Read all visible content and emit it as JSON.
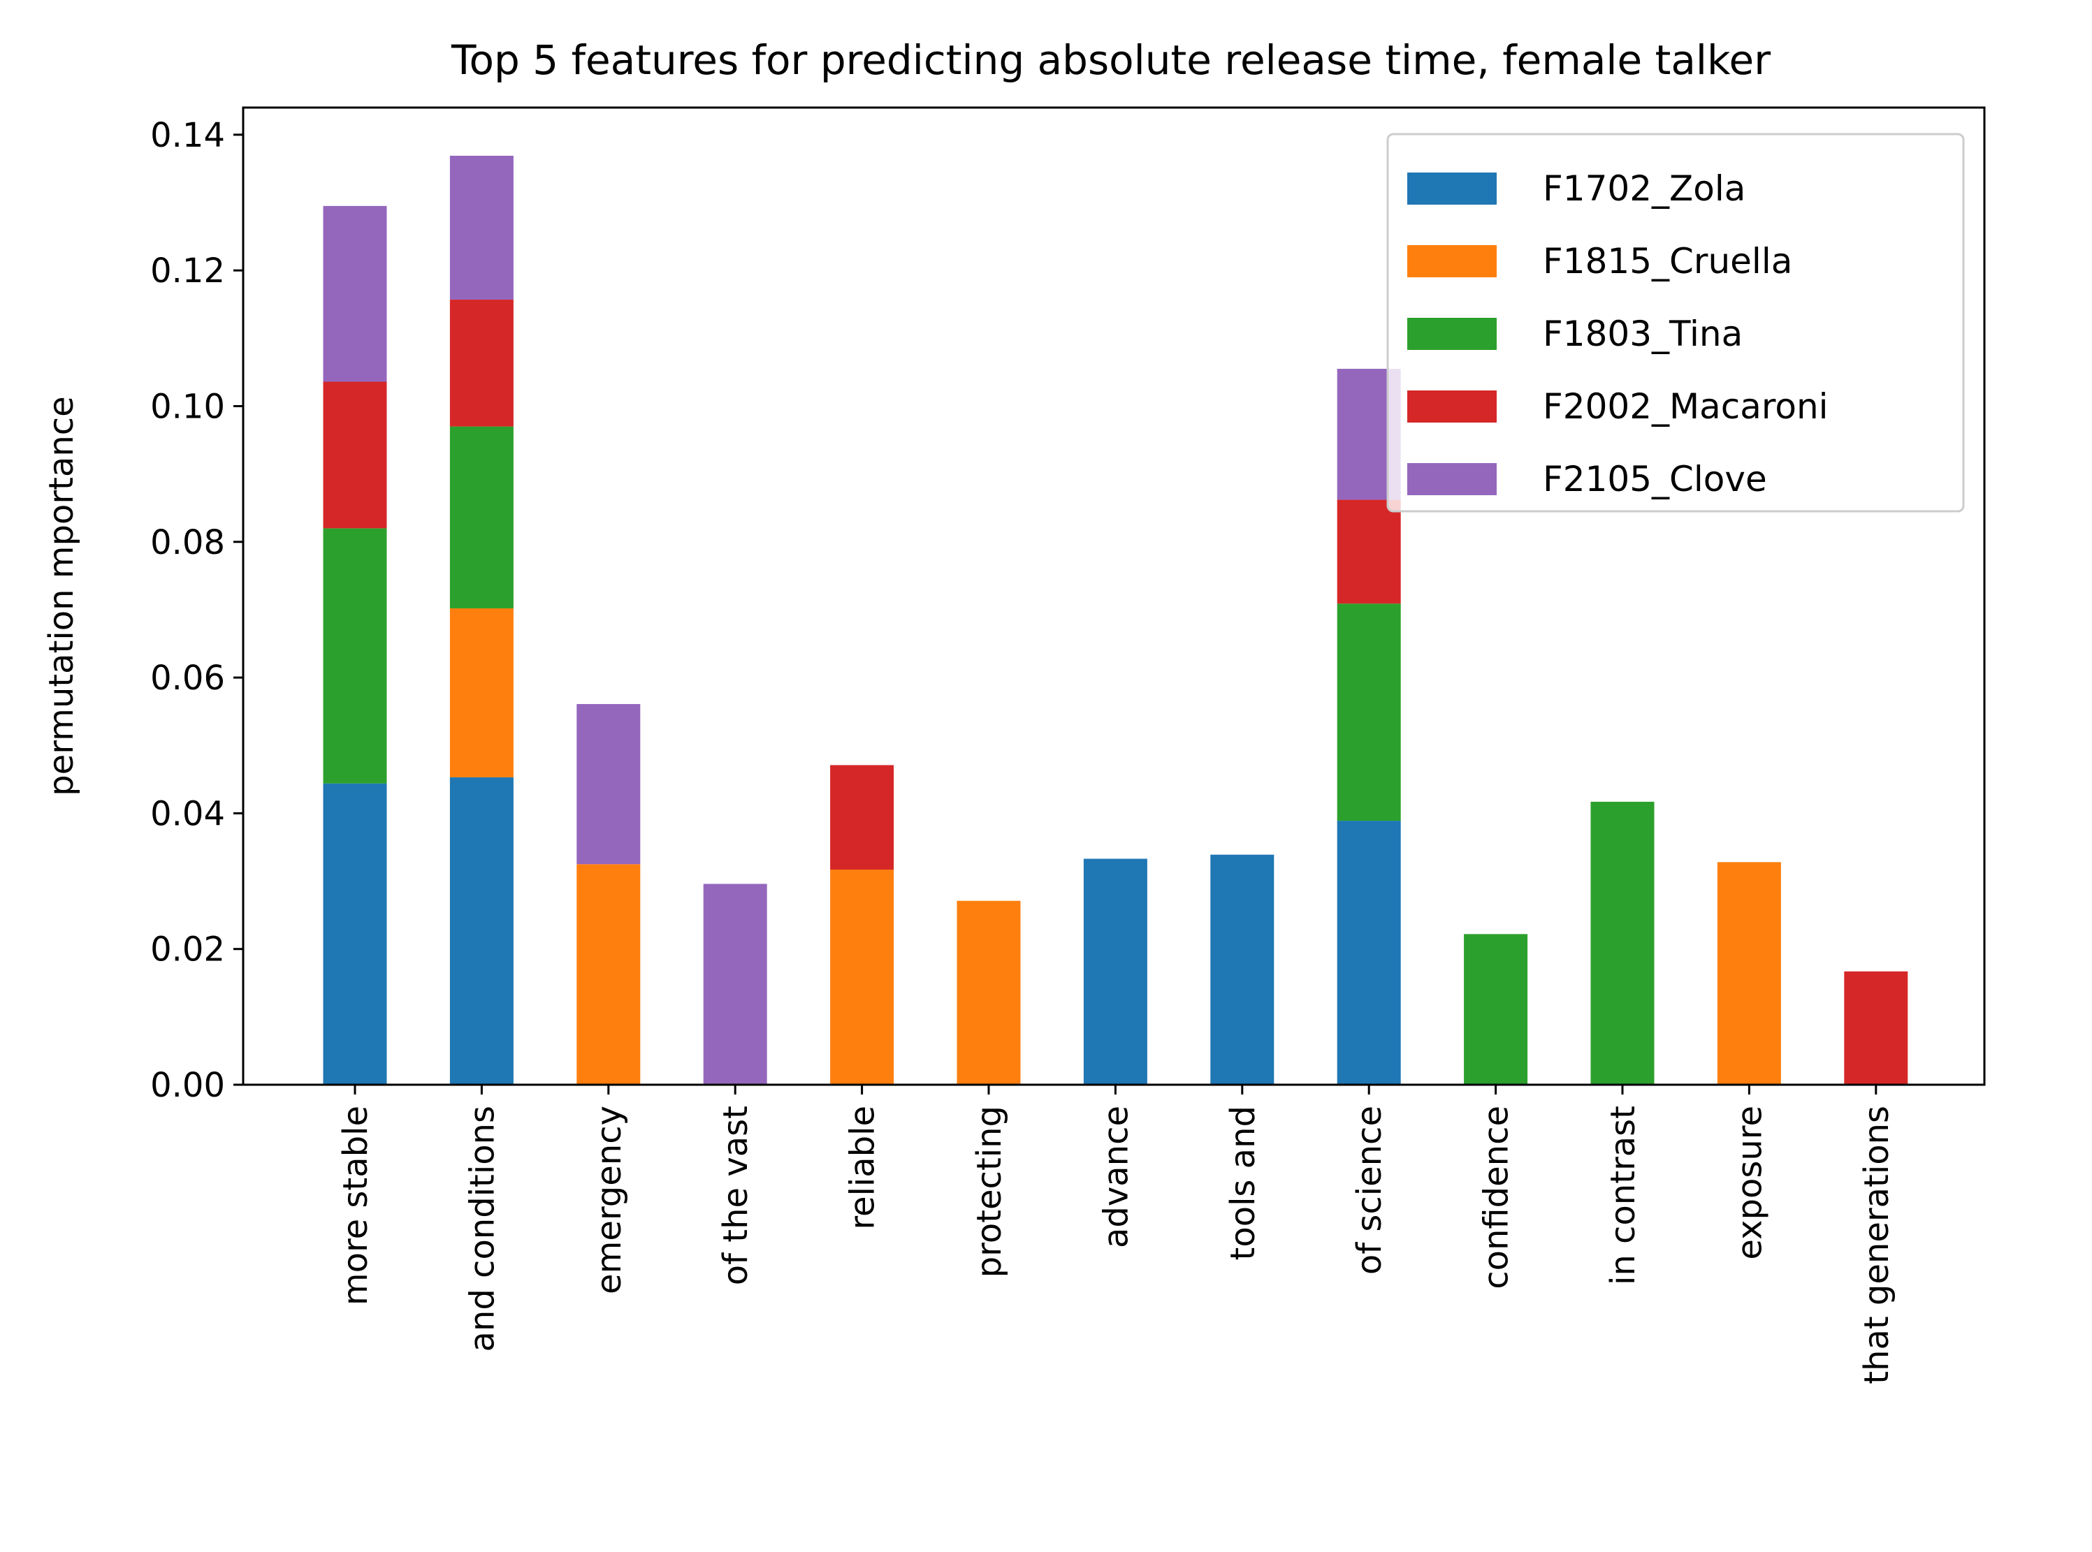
{
  "chart_data": {
    "type": "bar",
    "stacked": true,
    "title": "Top 5 features for predicting absolute release time, female talker",
    "xlabel": "",
    "ylabel": "permutation mportance",
    "ylim": [
      0,
      0.144
    ],
    "yticks": [
      "0.00",
      "0.02",
      "0.04",
      "0.06",
      "0.08",
      "0.10",
      "0.12",
      "0.14"
    ],
    "grid": false,
    "legend_position": "top-right",
    "categories": [
      "more stable",
      "and conditions",
      "emergency",
      "of the vast",
      "reliable",
      "protecting",
      "advance",
      "tools and",
      "of science",
      "confidence",
      "in contrast",
      "exposure",
      "that generations"
    ],
    "series": [
      {
        "name": "F1702_Zola",
        "color": "#1f77b4",
        "values": [
          0.0444,
          0.0453,
          0,
          0,
          0,
          0,
          0.0333,
          0.0339,
          0.0389,
          0,
          0,
          0,
          0
        ]
      },
      {
        "name": "F1815_Cruella",
        "color": "#ff7f0e",
        "values": [
          0,
          0.0249,
          0.0325,
          0,
          0.0317,
          0.0271,
          0,
          0,
          0,
          0,
          0,
          0.0328,
          0
        ]
      },
      {
        "name": "F1803_Tina",
        "color": "#2ca02c",
        "values": [
          0.0376,
          0.0268,
          0,
          0,
          0,
          0,
          0,
          0,
          0.032,
          0.0222,
          0.0417,
          0,
          0
        ]
      },
      {
        "name": "F2002_Macaroni",
        "color": "#d62728",
        "values": [
          0.0216,
          0.0187,
          0,
          0,
          0.0154,
          0,
          0,
          0,
          0.0153,
          0,
          0,
          0,
          0.0167
        ]
      },
      {
        "name": "F2105_Clove",
        "color": "#9467bd",
        "values": [
          0.0259,
          0.0212,
          0.0236,
          0.0296,
          0,
          0,
          0,
          0,
          0.0193,
          0,
          0,
          0,
          0
        ]
      }
    ]
  }
}
